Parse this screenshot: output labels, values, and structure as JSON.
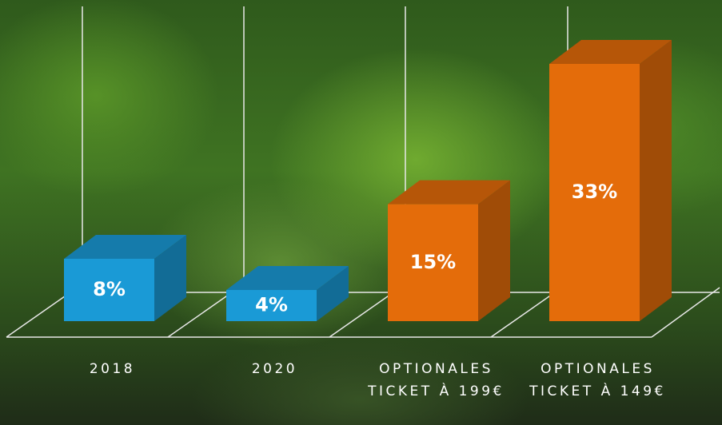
{
  "chart_data": {
    "type": "bar3d",
    "categories": [
      "2018",
      "2020",
      "OPTIONALES TICKET À 199€",
      "OPTIONALES TICKET À 149€"
    ],
    "values": [
      8,
      4,
      15,
      33
    ],
    "value_labels": [
      "8%",
      "4%",
      "15%",
      "33%"
    ],
    "colors": [
      "#1a9ad6",
      "#1a9ad6",
      "#e46c0a",
      "#e46c0a"
    ]
  }
}
